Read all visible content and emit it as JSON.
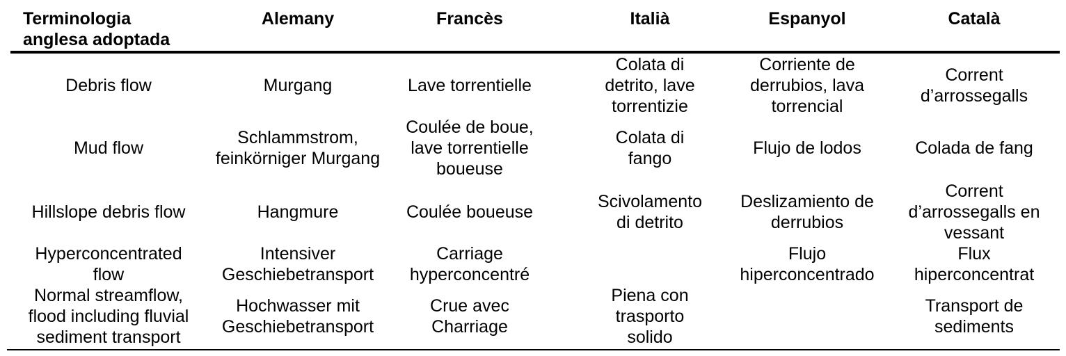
{
  "table": {
    "headers": [
      [
        "Terminologia",
        "anglesa adoptada"
      ],
      [
        "Alemany"
      ],
      [
        "Francès"
      ],
      [
        "Italià"
      ],
      [
        "Espanyol"
      ],
      [
        "Català"
      ]
    ],
    "rows": [
      [
        [
          "Debris flow"
        ],
        [
          "Murgang"
        ],
        [
          "Lave torrentielle"
        ],
        [
          "Colata di",
          "detrito, lave",
          "torrentizie"
        ],
        [
          "Corriente de",
          "derrubios, lava",
          "torrencial"
        ],
        [
          "Corrent",
          "d’arrossegalls"
        ]
      ],
      [
        [
          "Mud flow"
        ],
        [
          "Schlammstrom,",
          "feinkörniger Murgang"
        ],
        [
          "Coulée de boue,",
          "lave torrentielle",
          "boueuse"
        ],
        [
          "Colata di",
          "fango"
        ],
        [
          "Flujo de lodos"
        ],
        [
          "Colada de fang"
        ]
      ],
      [
        [
          "Hillslope debris flow"
        ],
        [
          "Hangmure"
        ],
        [
          "Coulée boueuse"
        ],
        [
          "Scivolamento",
          "di detrito"
        ],
        [
          "Deslizamiento de",
          "derrubios"
        ],
        [
          "Corrent",
          "d’arrossegalls en",
          "vessant"
        ]
      ],
      [
        [
          "Hyperconcentrated",
          "flow"
        ],
        [
          "Intensiver",
          "Geschiebetransport"
        ],
        [
          "Carriage",
          "hyperconcentré"
        ],
        [],
        [
          "Flujo",
          "hiperconcentrado"
        ],
        [
          "Flux",
          "hiperconcentrat"
        ]
      ],
      [
        [
          "Normal streamflow,",
          "flood including fluvial",
          "sediment transport"
        ],
        [
          "Hochwasser mit",
          "Geschiebetransport"
        ],
        [
          "Crue avec",
          "Charriage"
        ],
        [
          "Piena con",
          "trasporto",
          "solido"
        ],
        [],
        [
          "Transport de",
          "sediments"
        ]
      ]
    ]
  }
}
